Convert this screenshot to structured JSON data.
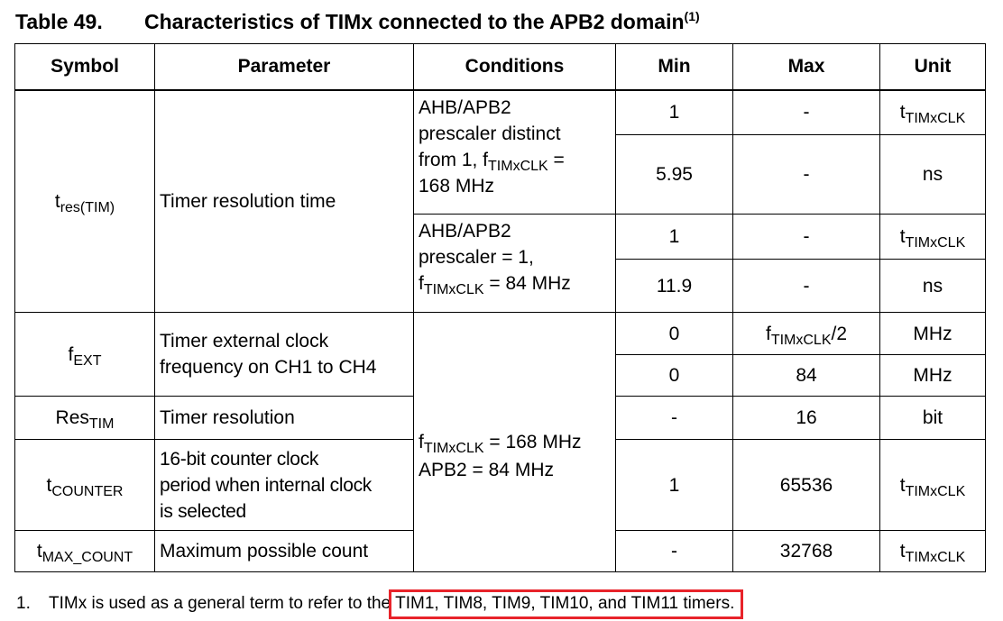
{
  "title": {
    "number": "Table 49.",
    "text": "Characteristics of TIMx connected to the APB2 domain",
    "footnote_ref": "(1)"
  },
  "headers": {
    "symbol": "Symbol",
    "parameter": "Parameter",
    "conditions": "Conditions",
    "min": "Min",
    "max": "Max",
    "unit": "Unit"
  },
  "rows": {
    "tres": {
      "sym_base": "t",
      "sym_sub": "res(TIM)",
      "parameter": "Timer resolution time",
      "cond1_lines": [
        "AHB/APB2",
        "prescaler distinct"
      ],
      "cond1_pre": "from 1, f",
      "cond1_sub": "TIMxCLK",
      "cond1_post": " =",
      "cond1_last": "168 MHz",
      "cond2_lines": [
        "AHB/APB2",
        "prescaler = 1,"
      ],
      "cond2_pre": "f",
      "cond2_sub": "TIMxCLK",
      "cond2_post": " = 84 MHz",
      "r1": {
        "min": "1",
        "max": "-",
        "unit_base": "t",
        "unit_sub": "TIMxCLK"
      },
      "r2": {
        "min": "5.95",
        "max": "-",
        "unit": "ns"
      },
      "r3": {
        "min": "1",
        "max": "-",
        "unit_base": "t",
        "unit_sub": "TIMxCLK"
      },
      "r4": {
        "min": "11.9",
        "max": "-",
        "unit": "ns"
      }
    },
    "fext": {
      "sym_base": "f",
      "sym_sub": "EXT",
      "parameter_lines": [
        "Timer external clock",
        "frequency on CH1 to CH4"
      ],
      "r1": {
        "min": "0",
        "max_base": "f",
        "max_sub": "TIMxCLK",
        "max_post": "/2",
        "unit": "MHz"
      },
      "r2": {
        "min": "0",
        "max": "84",
        "unit": "MHz"
      }
    },
    "shared_conditions": {
      "pre": "f",
      "sub": "TIMxCLK",
      "post": " = 168 MHz",
      "line2": "APB2 = 84 MHz"
    },
    "res": {
      "sym_base": "Res",
      "sym_sub": "TIM",
      "parameter": "Timer resolution",
      "min": "-",
      "max": "16",
      "unit": "bit"
    },
    "tcounter": {
      "sym_base": "t",
      "sym_sub": "COUNTER",
      "parameter_lines": [
        "16-bit counter clock",
        "period when internal clock",
        "is selected"
      ],
      "min": "1",
      "max": "65536",
      "unit_base": "t",
      "unit_sub": "TIMxCLK"
    },
    "tmax": {
      "sym_base": "t",
      "sym_sub": "MAX_COUNT",
      "parameter": "Maximum possible count",
      "min": "-",
      "max": "32768",
      "unit_base": "t",
      "unit_sub": "TIMxCLK"
    }
  },
  "footnote": {
    "number": "1.",
    "text": "TIMx is used as a general term to refer to the",
    "highlighted": "TIM1, TIM8, TIM9, TIM10, and TIM11 timers."
  },
  "colors": {
    "highlight_border": "#e8232a"
  }
}
